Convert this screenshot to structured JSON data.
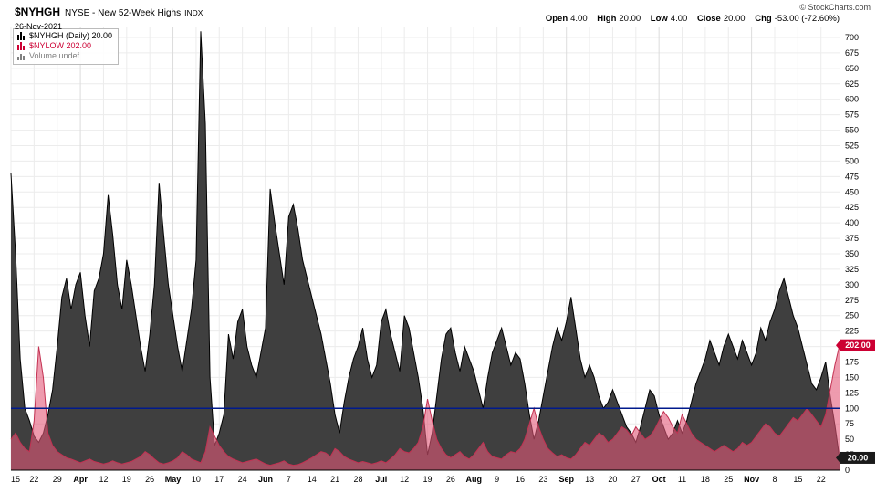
{
  "header": {
    "symbol": "$NYHGH",
    "exchange_name": "NYSE - New 52-Week Highs",
    "type": "INDX",
    "date": "26-Nov-2021",
    "copyright": "© StockCharts.com",
    "quote": {
      "open_label": "Open",
      "open": "4.00",
      "high_label": "High",
      "high": "20.00",
      "low_label": "Low",
      "low": "4.00",
      "close_label": "Close",
      "close": "20.00",
      "chg_label": "Chg",
      "chg": "-53.00 (-72.60%)"
    }
  },
  "legend": {
    "items": [
      {
        "label": "$NYHGH (Daily) 20.00",
        "color": "#000000"
      },
      {
        "label": "$NYLOW 202.00",
        "color": "#cc0033"
      },
      {
        "label": "Volume undef",
        "color": "#808080"
      }
    ]
  },
  "badges": {
    "nylow": "202.00",
    "nylow_value": 202,
    "nylow_color": "#cc0033",
    "nyhgh": "20.00",
    "nyhgh_value": 20,
    "nyhgh_color": "#1a1a1a"
  },
  "chart_data": {
    "type": "area",
    "title": "$NYHGH (Daily) with $NYLOW overlay",
    "x_labels": [
      "15",
      "22",
      "29",
      "Apr",
      "12",
      "19",
      "26",
      "May",
      "10",
      "17",
      "24",
      "Jun",
      "7",
      "14",
      "21",
      "28",
      "Jul",
      "12",
      "19",
      "26",
      "Aug",
      "9",
      "16",
      "23",
      "Sep",
      "13",
      "20",
      "27",
      "Oct",
      "11",
      "18",
      "25",
      "Nov",
      "8",
      "15",
      "22"
    ],
    "points_per_label": 5,
    "y_min": 0,
    "y_max": 700,
    "y_step": 25,
    "y_tick_hidden": 200,
    "grid": true,
    "legend_position": "top-left",
    "hline": {
      "value": 100,
      "color": "#001a8c"
    },
    "series": [
      {
        "name": "NYHGH",
        "fill": "#3f3f3f",
        "stroke": "#000000",
        "last": 20.0,
        "values": [
          480,
          350,
          180,
          100,
          80,
          55,
          45,
          60,
          90,
          130,
          200,
          280,
          310,
          260,
          300,
          320,
          250,
          200,
          290,
          310,
          350,
          445,
          380,
          300,
          260,
          340,
          300,
          250,
          200,
          160,
          220,
          300,
          465,
          380,
          300,
          250,
          200,
          160,
          210,
          260,
          340,
          710,
          560,
          150,
          40,
          60,
          90,
          220,
          180,
          240,
          260,
          200,
          170,
          150,
          190,
          230,
          455,
          400,
          350,
          300,
          410,
          430,
          390,
          340,
          310,
          280,
          250,
          220,
          180,
          140,
          90,
          60,
          110,
          150,
          180,
          200,
          230,
          180,
          150,
          170,
          240,
          260,
          220,
          190,
          160,
          250,
          230,
          190,
          150,
          100,
          25,
          60,
          120,
          180,
          220,
          230,
          190,
          160,
          200,
          180,
          160,
          130,
          100,
          150,
          190,
          210,
          230,
          200,
          170,
          190,
          180,
          140,
          90,
          50,
          80,
          120,
          160,
          200,
          230,
          210,
          240,
          280,
          230,
          180,
          150,
          170,
          150,
          120,
          100,
          110,
          130,
          110,
          90,
          70,
          60,
          45,
          70,
          100,
          130,
          120,
          90,
          70,
          50,
          60,
          80,
          60,
          80,
          110,
          140,
          160,
          180,
          210,
          190,
          170,
          200,
          220,
          200,
          180,
          210,
          190,
          170,
          190,
          230,
          210,
          240,
          260,
          290,
          310,
          280,
          250,
          230,
          200,
          170,
          140,
          130,
          150,
          175,
          120,
          73,
          20
        ]
      },
      {
        "name": "NYLOW",
        "fill": "rgba(226,88,120,0.6)",
        "stroke": "#c33152",
        "last": 202.0,
        "values": [
          50,
          60,
          45,
          35,
          30,
          80,
          200,
          150,
          60,
          40,
          30,
          25,
          20,
          18,
          15,
          12,
          15,
          18,
          14,
          12,
          10,
          12,
          15,
          12,
          10,
          12,
          14,
          18,
          22,
          30,
          25,
          18,
          12,
          10,
          12,
          15,
          20,
          30,
          25,
          18,
          15,
          12,
          30,
          70,
          55,
          40,
          30,
          22,
          18,
          15,
          12,
          14,
          16,
          18,
          14,
          10,
          8,
          10,
          12,
          15,
          10,
          8,
          9,
          12,
          16,
          20,
          25,
          30,
          28,
          22,
          35,
          30,
          22,
          18,
          15,
          12,
          14,
          12,
          10,
          12,
          15,
          12,
          18,
          25,
          35,
          30,
          28,
          35,
          45,
          70,
          115,
          80,
          50,
          35,
          25,
          20,
          25,
          30,
          22,
          18,
          25,
          35,
          45,
          30,
          22,
          20,
          18,
          25,
          30,
          28,
          35,
          50,
          75,
          100,
          70,
          50,
          35,
          28,
          22,
          25,
          20,
          18,
          25,
          35,
          45,
          40,
          50,
          60,
          55,
          45,
          50,
          60,
          70,
          65,
          55,
          70,
          60,
          50,
          55,
          65,
          80,
          95,
          85,
          70,
          60,
          90,
          75,
          60,
          50,
          45,
          40,
          35,
          30,
          35,
          40,
          35,
          30,
          35,
          45,
          40,
          45,
          55,
          65,
          75,
          70,
          60,
          55,
          65,
          75,
          85,
          80,
          90,
          100,
          90,
          80,
          70,
          90,
          130,
          170,
          202
        ]
      }
    ]
  }
}
